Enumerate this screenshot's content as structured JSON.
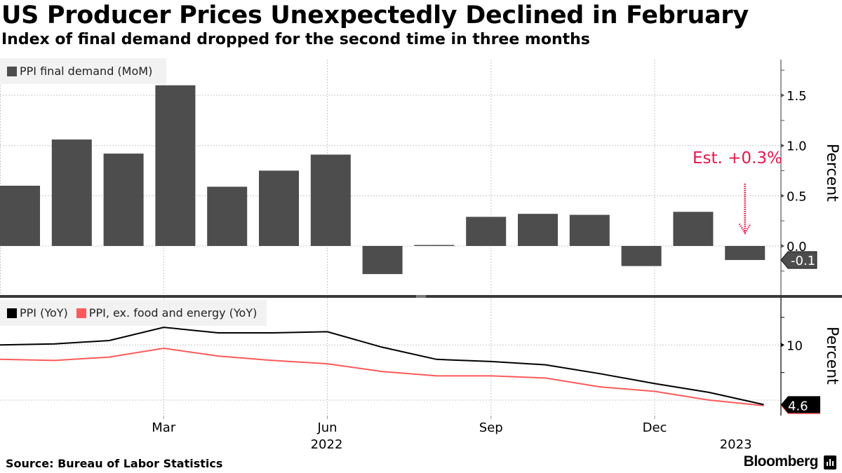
{
  "title": "US Producer Prices Unexpectedly Declined in February",
  "subtitle": "Index of final demand dropped for the second time in three months",
  "source": "Source: Bureau of Labor Statistics",
  "brand": "Bloomberg",
  "colors": {
    "bar": "#4d4d4d",
    "ppi_yoy": "#000000",
    "ppi_core_yoy": "#ff5a5a",
    "estimate": "#e8174a",
    "legend_bg": "#f2f2f2"
  },
  "chart_data": [
    {
      "type": "bar",
      "panel": "top",
      "title": "US Producer Prices Unexpectedly Declined in February",
      "legend": "PPI final demand (MoM)",
      "ylabel": "Percent",
      "ylim": [
        -0.5,
        1.85
      ],
      "yticks": [
        "0.0",
        "0.5",
        "1.0",
        "1.5"
      ],
      "ytick_values": [
        0.0,
        0.5,
        1.0,
        1.5
      ],
      "categories": [
        "Dec 2021",
        "Jan 2022",
        "Feb 2022",
        "Mar 2022",
        "Apr 2022",
        "May 2022",
        "Jun 2022",
        "Jul 2022",
        "Aug 2022",
        "Sep 2022",
        "Oct 2022",
        "Nov 2022",
        "Dec 2022",
        "Jan 2023",
        "Feb 2023"
      ],
      "values": [
        0.6,
        1.06,
        0.92,
        1.6,
        0.59,
        0.75,
        0.91,
        -0.28,
        0.01,
        0.29,
        0.32,
        0.31,
        -0.2,
        0.34,
        -0.14
      ],
      "last_value_label": "-0.1",
      "annotation": {
        "text": "Est. +0.3%",
        "value": 0.3,
        "category": "Feb 2023"
      },
      "grid": true,
      "legend_position": "top-left"
    },
    {
      "type": "line",
      "panel": "bottom",
      "ylabel": "Percent",
      "ylim": [
        3.6,
        14.2
      ],
      "yticks": [
        "10"
      ],
      "ytick_values": [
        10
      ],
      "gridlines": [
        5,
        10
      ],
      "x": [
        "Dec 2021",
        "Jan 2022",
        "Feb 2022",
        "Mar 2022",
        "Apr 2022",
        "May 2022",
        "Jun 2022",
        "Jul 2022",
        "Aug 2022",
        "Sep 2022",
        "Oct 2022",
        "Nov 2022",
        "Dec 2022",
        "Jan 2023",
        "Feb 2023"
      ],
      "series": [
        {
          "name": "PPI (YoY)",
          "values": [
            10.0,
            10.1,
            10.4,
            11.6,
            11.1,
            11.1,
            11.2,
            9.8,
            8.7,
            8.5,
            8.2,
            7.4,
            6.5,
            5.7,
            4.6
          ]
        },
        {
          "name": "PPI, ex. food and energy (YoY)",
          "values": [
            8.7,
            8.6,
            8.9,
            9.7,
            9.0,
            8.6,
            8.3,
            7.6,
            7.2,
            7.2,
            7.0,
            6.2,
            5.8,
            5.0,
            4.5
          ]
        }
      ],
      "last_value_label": "4.6",
      "grid": true,
      "legend_position": "top-left"
    }
  ],
  "xaxis": {
    "ticks": [
      {
        "label": "Mar",
        "index": 3
      },
      {
        "label": "Jun",
        "index": 6
      },
      {
        "label": "Sep",
        "index": 9
      },
      {
        "label": "Dec",
        "index": 12
      }
    ],
    "years": [
      {
        "label": "2022",
        "index": 6
      },
      {
        "label": "2023",
        "index": 13.5
      }
    ]
  }
}
